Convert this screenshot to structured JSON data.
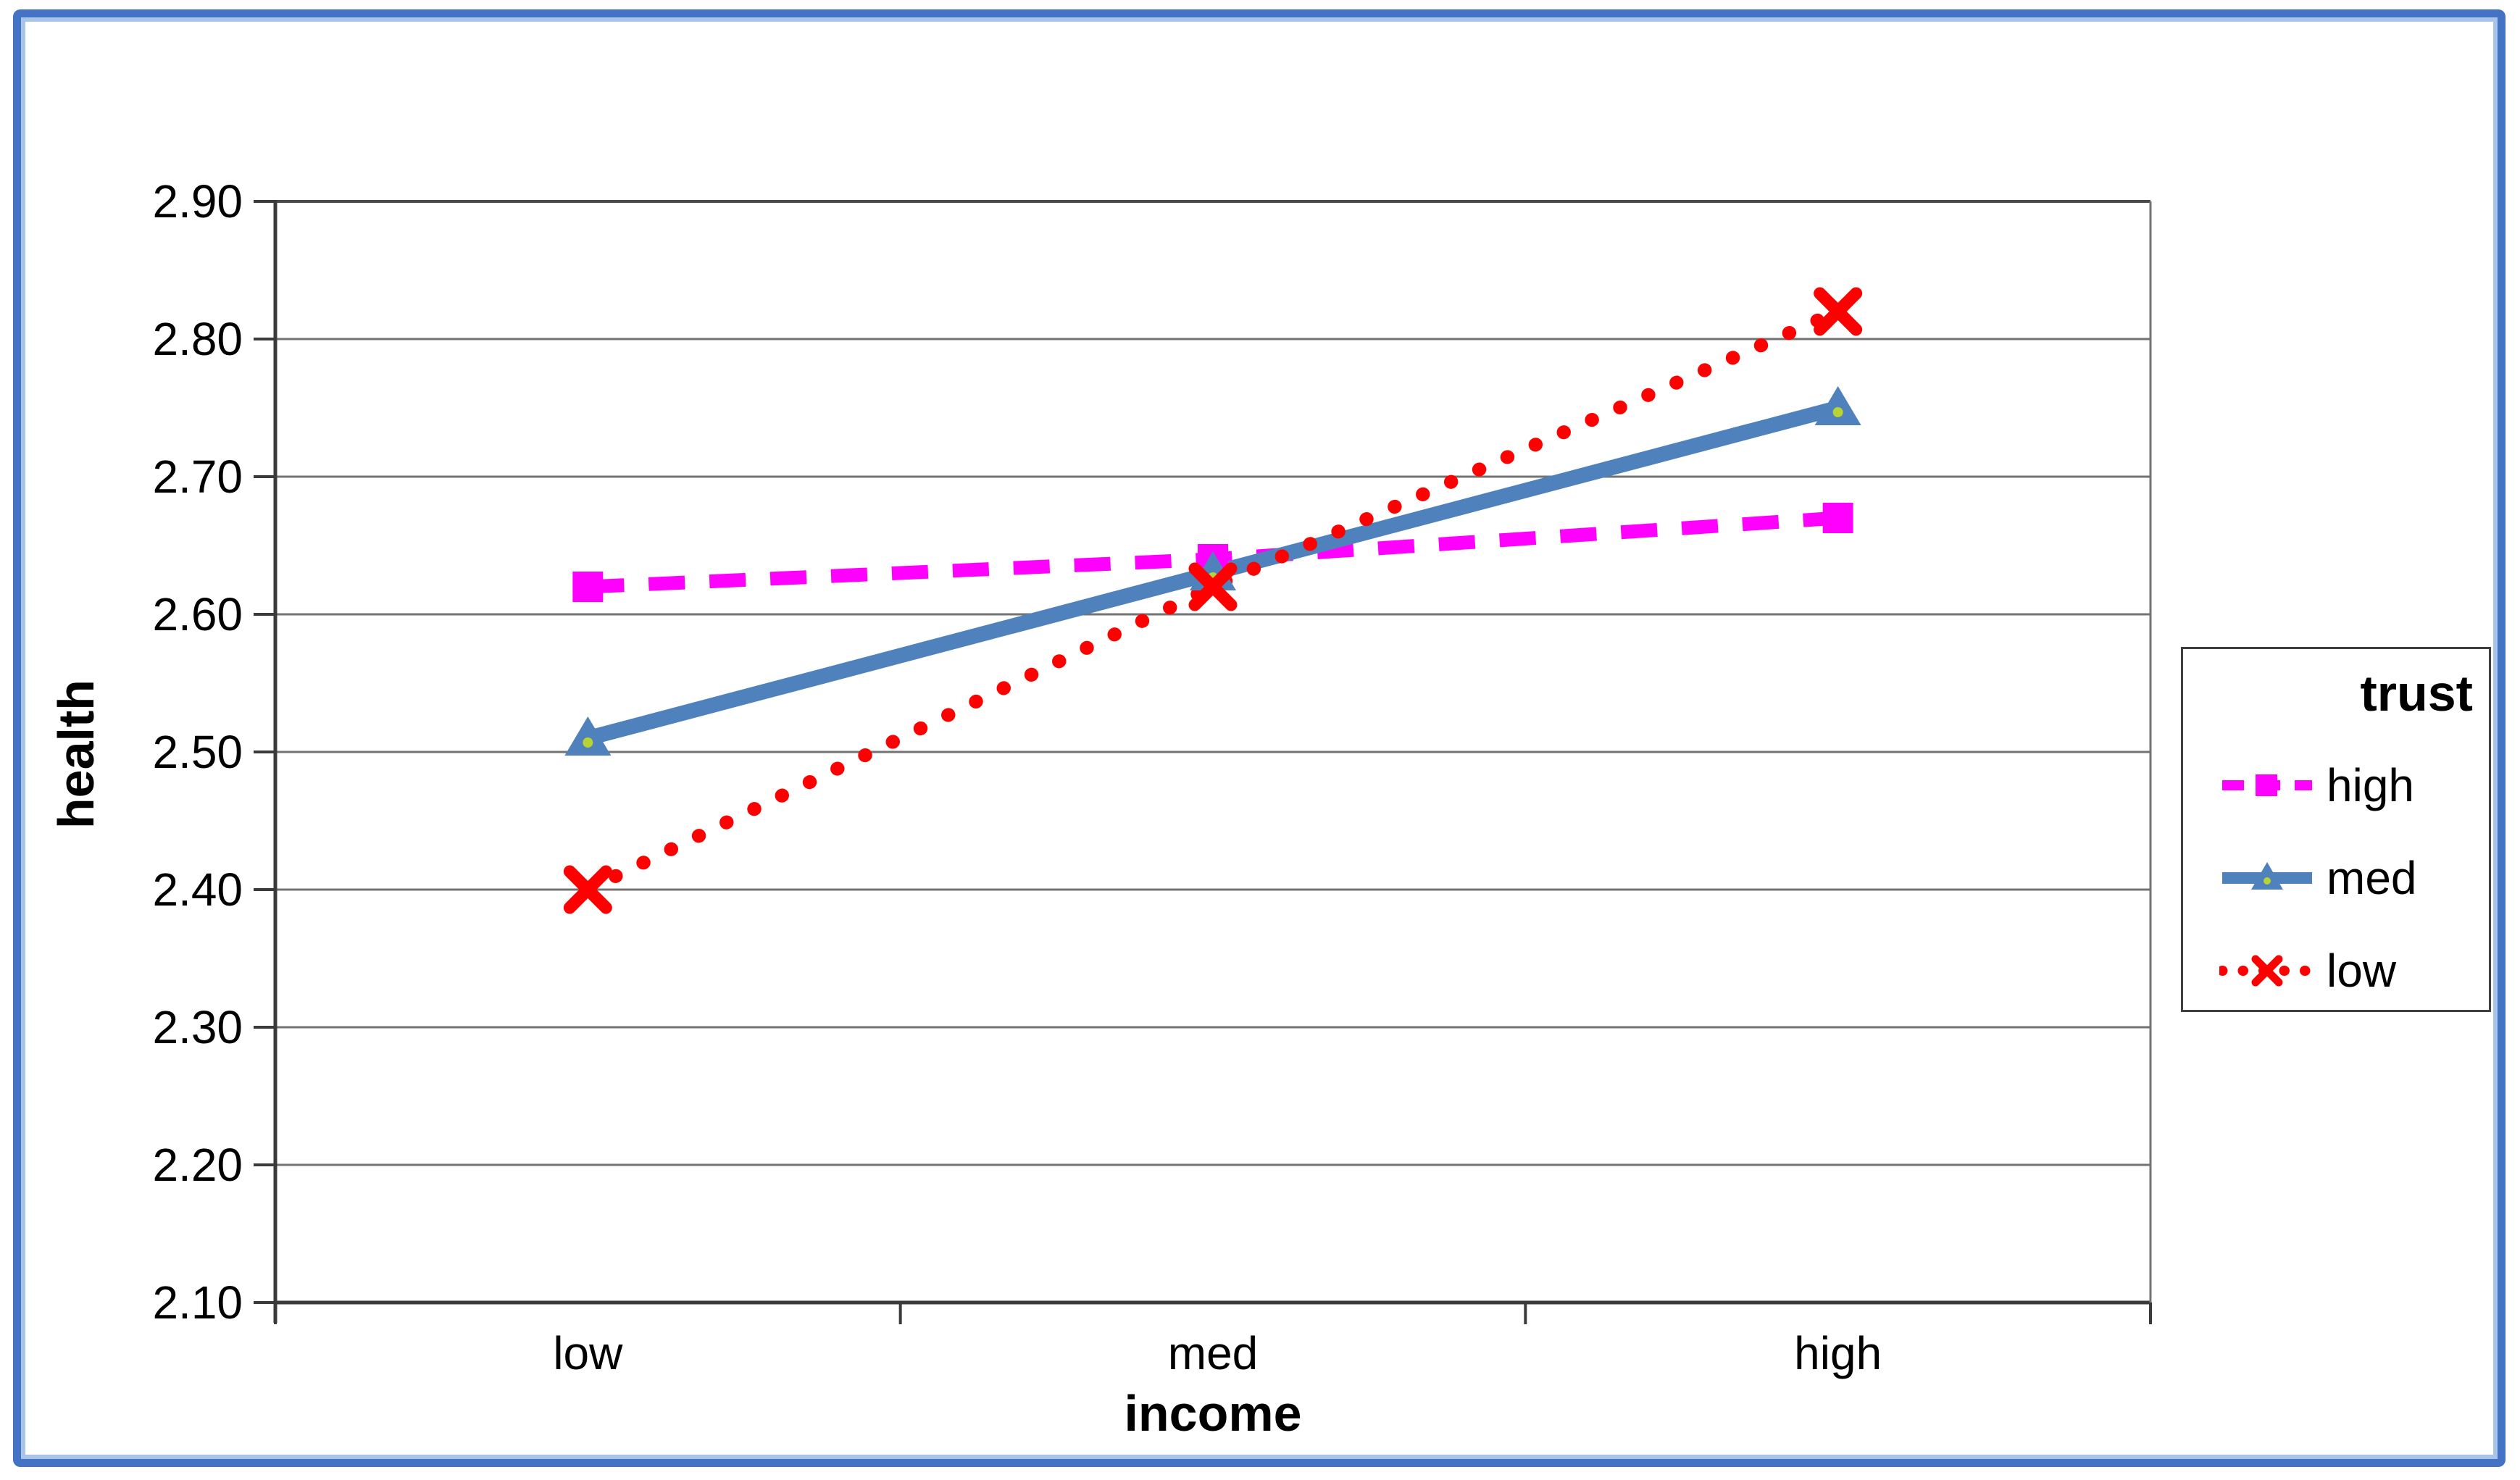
{
  "chart_data": {
    "type": "line",
    "title": "",
    "xlabel": "income",
    "ylabel": "health",
    "categories": [
      "low",
      "med",
      "high"
    ],
    "series": [
      {
        "name": "high",
        "color": "#FF00FF",
        "line_style": "dashed",
        "marker": "square",
        "values": [
          2.62,
          2.64,
          2.67
        ]
      },
      {
        "name": "med",
        "color": "#4F81BD",
        "line_style": "solid",
        "marker": "triangle",
        "values": [
          2.51,
          2.63,
          2.75
        ]
      },
      {
        "name": "low",
        "color": "#FF0000",
        "line_style": "dotted",
        "marker": "x",
        "values": [
          2.4,
          2.62,
          2.82
        ]
      }
    ],
    "ylim": [
      2.1,
      2.9
    ],
    "ytick_step": 0.1,
    "ytick_labels": [
      "2.90",
      "2.80",
      "2.70",
      "2.60",
      "2.50",
      "2.40",
      "2.30",
      "2.20",
      "2.10"
    ],
    "grid": "horizontal-only",
    "legend_title": "trust",
    "legend_position": "right-outside"
  },
  "style_colors": {
    "outer_border": "#4472C4",
    "outer_border_inner_stripe": "#a9c4e9",
    "gridline": "#737373",
    "axis_line": "#3a3a3a",
    "legend_border": "#3f3f3f",
    "triangle_center_dot": "#b7d433",
    "background": "#ffffff",
    "text": "#000000"
  }
}
